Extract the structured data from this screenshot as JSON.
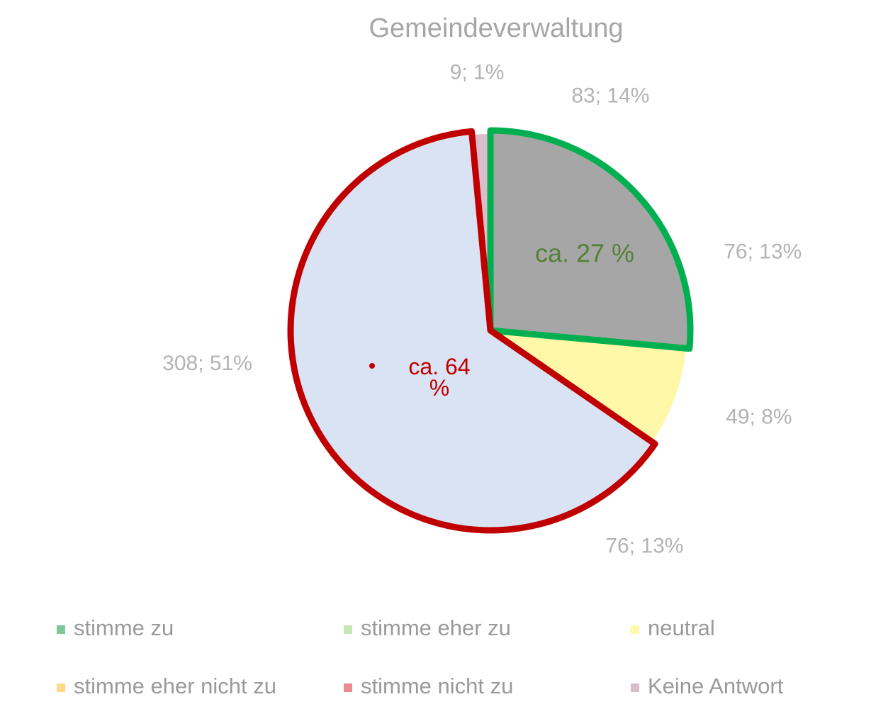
{
  "chart_data": {
    "type": "pie",
    "title": "Gemeindeverwaltung",
    "categories": [
      "stimme zu",
      "stimme eher zu",
      "neutral",
      "stimme eher nicht zu",
      "stimme nicht zu",
      "Keine Antwort"
    ],
    "values": [
      83,
      76,
      49,
      76,
      308,
      9
    ],
    "value_labels": [
      "83; 14%",
      "76; 13%",
      "49; 8%",
      "76; 13%",
      "308; 51%",
      "9; 1%"
    ],
    "colors": [
      "#7cc79c",
      "#c9e6b8",
      "#fff8a8",
      "#ffd98a",
      "#e98c8c",
      "#dbbccb"
    ],
    "annotations": [
      "ca. 27 %",
      "ca. 64 %"
    ],
    "legend": "bottom"
  }
}
